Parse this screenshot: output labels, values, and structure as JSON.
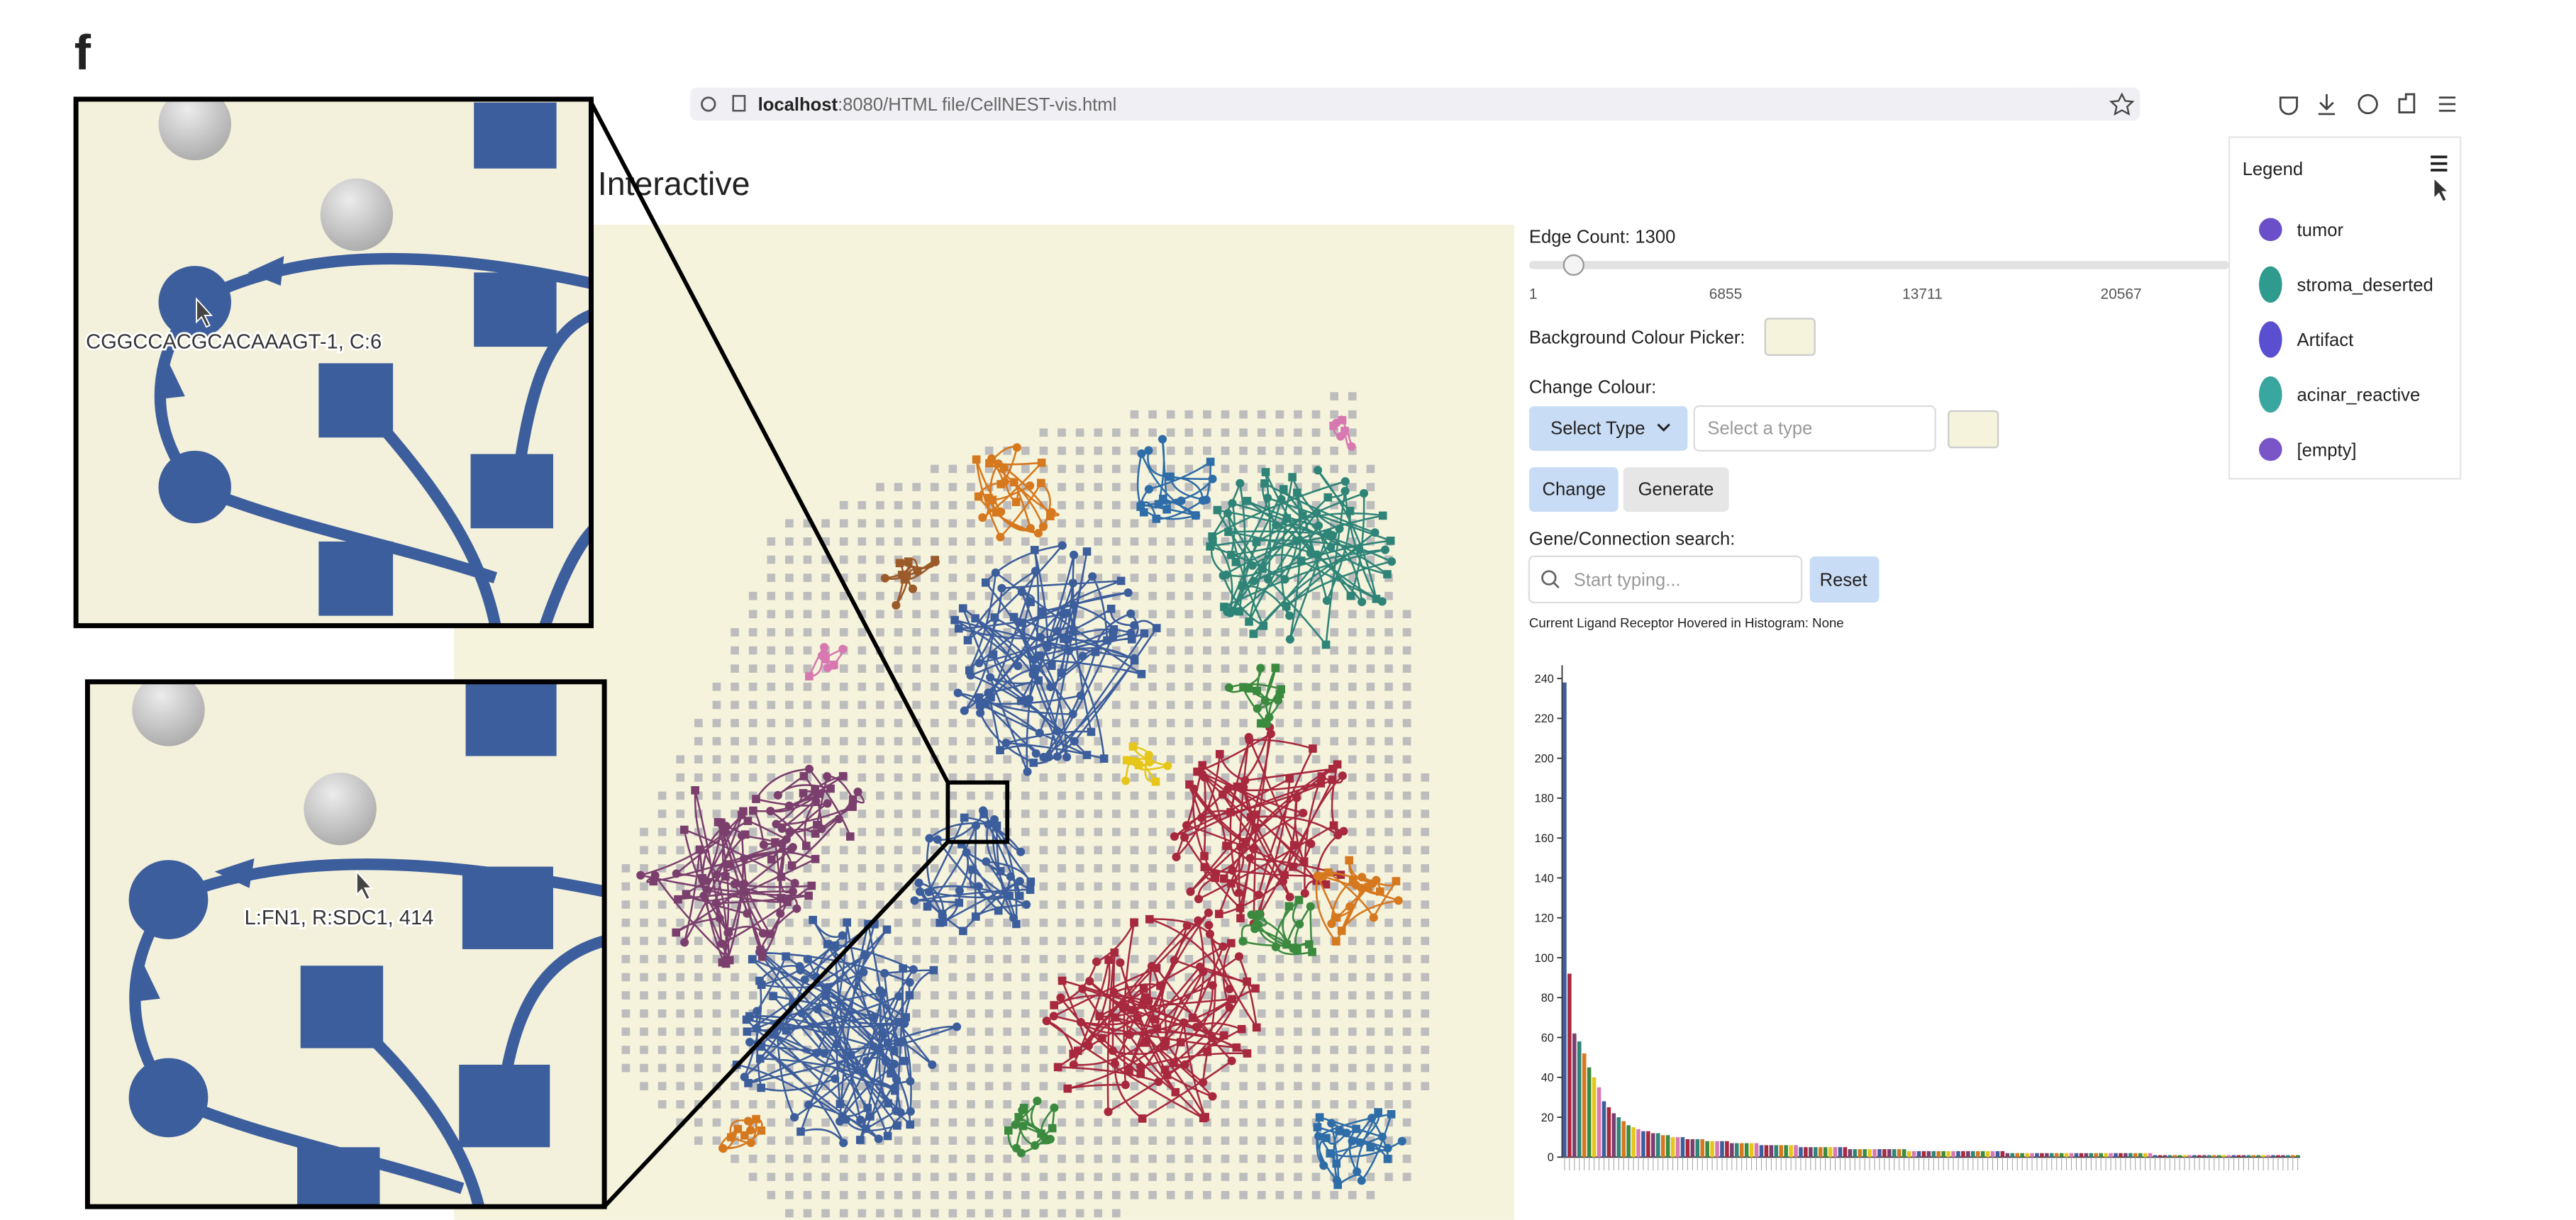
{
  "panel_label": "f",
  "browser": {
    "url_host": "localhost",
    "url_path": ":8080/HTML file/CellNEST-vis.html"
  },
  "page": {
    "title": "Interactive"
  },
  "controls": {
    "edge_count_label": "Edge Count: 1300",
    "slider_ticks": [
      "1",
      "6855",
      "13711",
      "20567"
    ],
    "background_picker_label": "Background Colour Picker:",
    "change_colour_label": "Change Colour:",
    "select_type_button": "Select Type",
    "select_type_placeholder": "Select a type",
    "change_button": "Change",
    "generate_button": "Generate",
    "search_label": "Gene/Connection search:",
    "search_placeholder": "Start typing...",
    "reset_button": "Reset",
    "hover_status": "Current Ligand Receptor Hovered in Histogram: None"
  },
  "histogram": {
    "type": "bar",
    "ylim": [
      0,
      240
    ],
    "yticks": [
      0,
      20,
      40,
      60,
      80,
      100,
      120,
      140,
      160,
      180,
      200,
      220,
      240
    ],
    "colors": [
      "#3d5e9c",
      "#a8283e",
      "#7b3f6e",
      "#2f8478",
      "#d6781e",
      "#3b8a3f",
      "#e6c619",
      "#d778b0"
    ],
    "values": [
      238,
      92,
      62,
      58,
      52,
      45,
      40,
      35,
      28,
      25,
      22,
      20,
      18,
      16,
      15,
      14,
      13,
      13,
      12,
      12,
      11,
      11,
      10,
      10,
      10,
      9,
      9,
      9,
      9,
      8,
      8,
      8,
      8,
      8,
      7,
      7,
      7,
      7,
      7,
      7,
      6,
      6,
      6,
      6,
      6,
      6,
      6,
      6,
      5,
      5,
      5,
      5,
      5,
      5,
      5,
      5,
      5,
      5,
      4,
      4,
      4,
      4,
      4,
      4,
      4,
      4,
      4,
      4,
      4,
      4,
      3,
      3,
      3,
      3,
      3,
      3,
      3,
      3,
      3,
      3,
      3,
      3,
      3,
      3,
      3,
      3,
      3,
      3,
      3,
      3,
      2,
      2,
      2,
      2,
      2,
      2,
      2,
      2,
      2,
      2,
      2,
      2,
      2,
      2,
      2,
      2,
      2,
      2,
      2,
      2,
      2,
      2,
      2,
      2,
      2,
      2,
      2,
      2,
      2,
      2,
      1,
      1,
      1,
      1,
      1,
      1,
      1,
      1,
      1,
      1,
      1,
      1,
      1,
      1,
      1,
      1,
      1,
      1,
      1,
      1,
      1,
      1,
      1,
      1,
      1,
      1,
      1,
      1,
      1,
      1
    ]
  },
  "legend": {
    "title": "Legend",
    "items": [
      {
        "label": "tumor",
        "color": "#6a4fc9"
      },
      {
        "label": "stroma_deserted",
        "color": "#2f9a8e"
      },
      {
        "label": "Artifact",
        "color": "#5a4fd0"
      },
      {
        "label": "acinar_reactive",
        "color": "#3aa6a0"
      },
      {
        "label": "[empty]",
        "color": "#7a55c8"
      }
    ]
  },
  "insets": {
    "top_label": "CGGCCACGCACAAAGT-1, C:6",
    "bottom_label": "L:FN1, R:SDC1, 414"
  }
}
